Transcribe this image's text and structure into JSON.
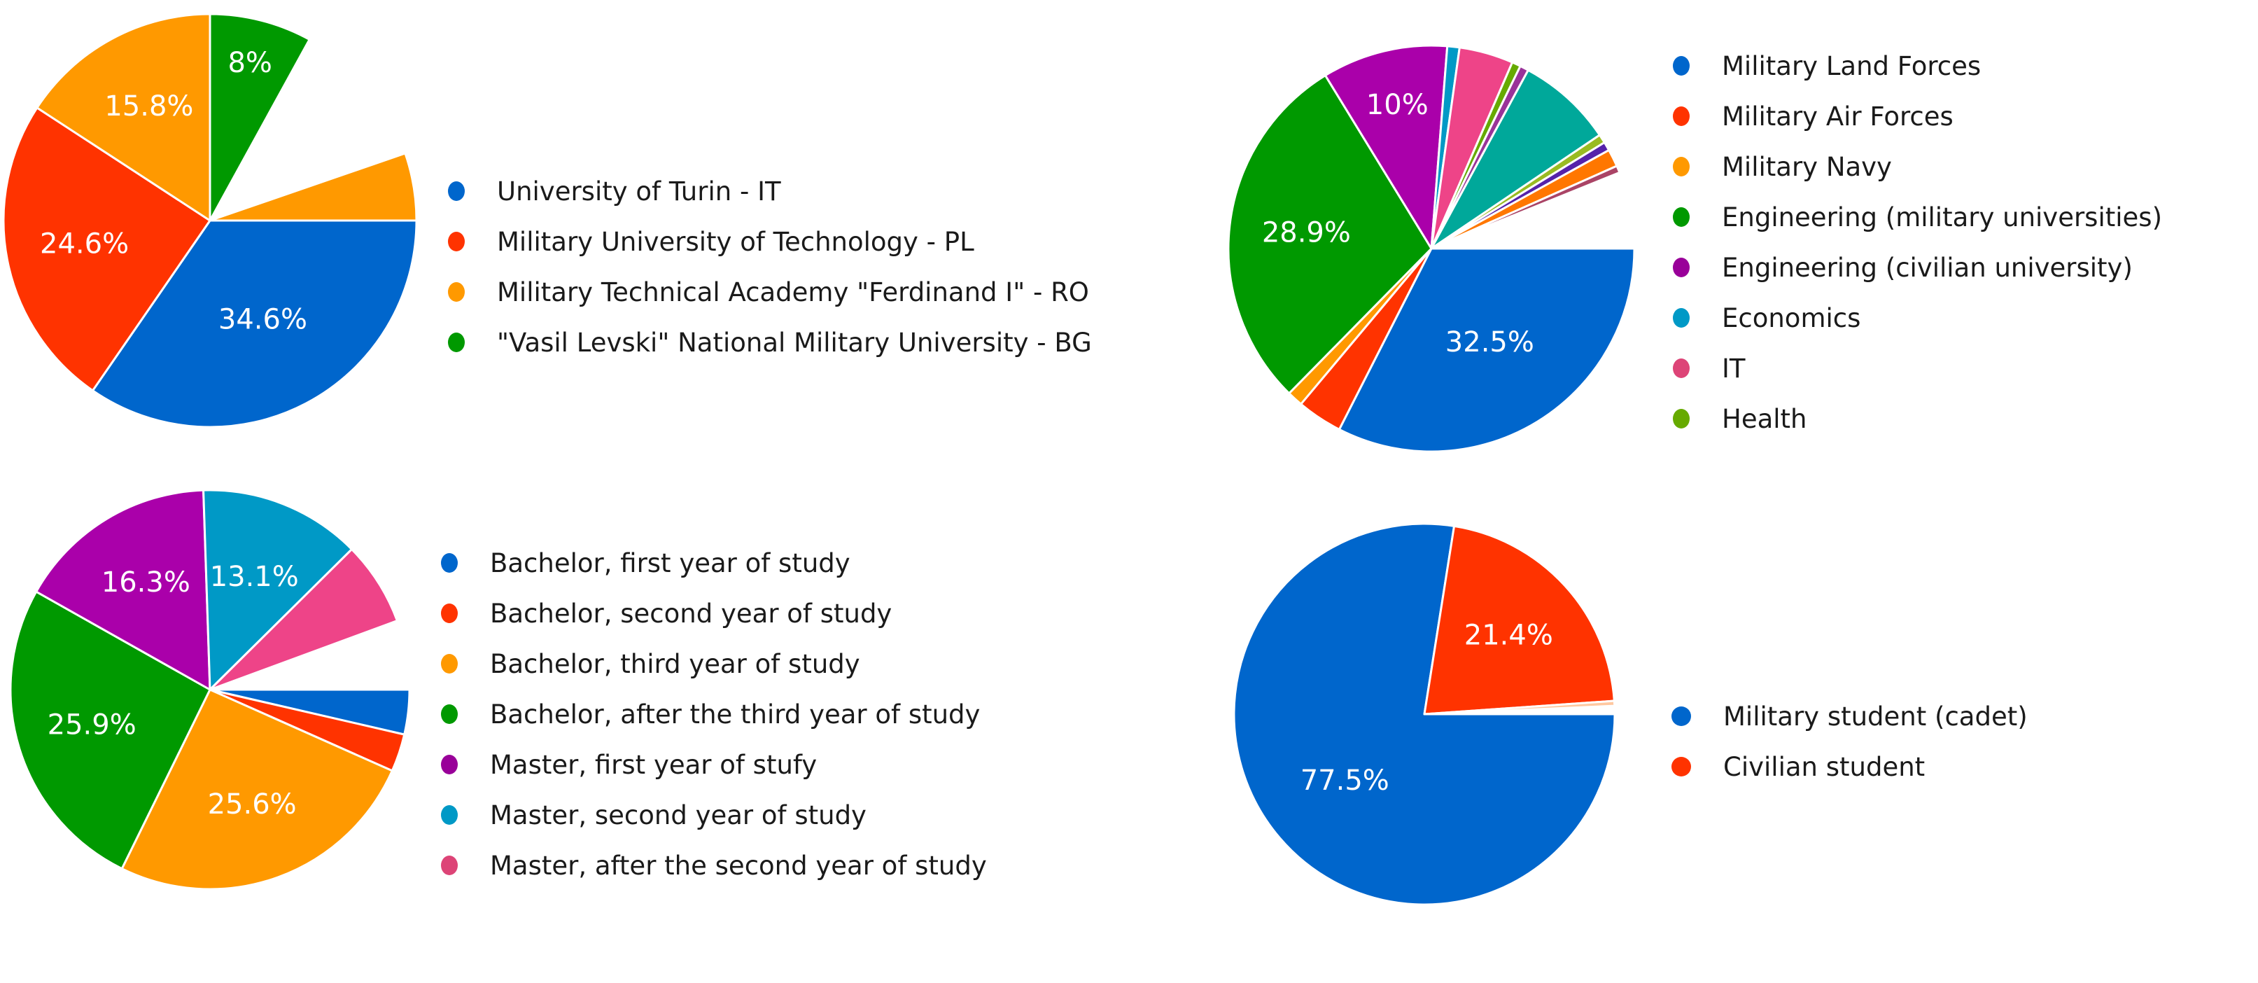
{
  "chart_data": [
    {
      "type": "pie",
      "title": "",
      "id": "universities",
      "categories": [
        "University of Turin - IT",
        "Military University of Technology - PL",
        "Military Technical Academy \"Ferdinand I\" - RO",
        "\"Vasil Levski\" National Military University - BG"
      ],
      "values": [
        34.6,
        24.6,
        15.8,
        8.0
      ],
      "labels": [
        "34.6%",
        "24.6%",
        "15.8%",
        "8%"
      ],
      "colors": [
        "#0066CC",
        "#FF3300",
        "#FF9900",
        "#009900"
      ],
      "extra_wedge": {
        "color": "#FF9900",
        "start_deg": 341,
        "end_deg": 360
      },
      "legend_position": "right"
    },
    {
      "type": "pie",
      "title": "",
      "id": "field_of_study",
      "categories": [
        "Military Land Forces",
        "Military Air Forces",
        "Military Navy",
        "Engineering (military universities)",
        "Engineering (civilian university)",
        "Economics",
        "IT",
        "Health"
      ],
      "values": [
        32.5,
        3.6,
        1.2,
        28.9,
        10.0,
        1.0,
        4.3,
        0.8
      ],
      "labels": [
        "32.5%",
        "",
        "",
        "28.9%",
        "10%",
        "",
        "",
        ""
      ],
      "colors": [
        "#0066CC",
        "#FF3300",
        "#FF9900",
        "#009900",
        "#990099",
        "#0099C6",
        "#DD4477",
        "#66AA00"
      ],
      "additional_unlabeled_slices": [
        {
          "color": "#990099",
          "value": 0.8
        },
        {
          "color": "#0099A0",
          "value": 7.6
        },
        {
          "color": "#66AA00",
          "value": 0.7
        },
        {
          "color": "#5522AA",
          "value": 0.7
        },
        {
          "color": "#FF7700",
          "value": 1.4
        },
        {
          "color": "#AA4466",
          "value": 0.5
        }
      ],
      "legend_position": "right"
    },
    {
      "type": "pie",
      "title": "",
      "id": "study_year",
      "categories": [
        "Bachelor, first year of study",
        "Bachelor, second year of study",
        "Bachelor, third year of study",
        "Bachelor, after the third year of study",
        "Master, first year of stufy",
        "Master, second year of study",
        "Master, after the second year of study"
      ],
      "values": [
        3.6,
        3.0,
        25.6,
        25.9,
        16.3,
        13.1,
        6.8
      ],
      "labels": [
        "",
        "",
        "25.6%",
        "25.9%",
        "16.3%",
        "13.1%",
        ""
      ],
      "colors": [
        "#0066CC",
        "#FF3300",
        "#FF9900",
        "#009900",
        "#990099",
        "#0099C6",
        "#DD4477"
      ],
      "legend_position": "right"
    },
    {
      "type": "pie",
      "title": "",
      "id": "student_type",
      "categories": [
        "Military student (cadet)",
        "Civilian student"
      ],
      "values": [
        77.5,
        21.4
      ],
      "labels": [
        "77.5%",
        "21.4%"
      ],
      "colors": [
        "#0066CC",
        "#FF3300"
      ],
      "legend_position": "right"
    }
  ],
  "legends": {
    "universities": [
      {
        "label": "University of Turin - IT",
        "color": "#0066CC"
      },
      {
        "label": "Military University of Technology - PL",
        "color": "#FF3300"
      },
      {
        "label": "Military Technical Academy \"Ferdinand I\" - RO",
        "color": "#FF9900"
      },
      {
        "label": "\"Vasil Levski\" National Military University - BG",
        "color": "#009900"
      }
    ],
    "field_of_study": [
      {
        "label": "Military Land Forces",
        "color": "#0066CC"
      },
      {
        "label": "Military Air Forces",
        "color": "#FF3300"
      },
      {
        "label": "Military Navy",
        "color": "#FF9900"
      },
      {
        "label": "Engineering (military universities)",
        "color": "#009900"
      },
      {
        "label": "Engineering (civilian university)",
        "color": "#990099"
      },
      {
        "label": "Economics",
        "color": "#0099C6"
      },
      {
        "label": "IT",
        "color": "#DD4477"
      },
      {
        "label": "Health",
        "color": "#66AA00"
      }
    ],
    "study_year": [
      {
        "label": "Bachelor, first year of study",
        "color": "#0066CC"
      },
      {
        "label": "Bachelor, second year of study",
        "color": "#FF3300"
      },
      {
        "label": "Bachelor, third year of study",
        "color": "#FF9900"
      },
      {
        "label": "Bachelor, after the third year of study",
        "color": "#009900"
      },
      {
        "label": "Master, first year of stufy",
        "color": "#990099"
      },
      {
        "label": "Master, second year of study",
        "color": "#0099C6"
      },
      {
        "label": "Master, after the second year of study",
        "color": "#DD4477"
      }
    ],
    "student_type": [
      {
        "label": "Military student (cadet)",
        "color": "#0066CC"
      },
      {
        "label": "Civilian student",
        "color": "#FF3300"
      }
    ]
  },
  "pie_slices": {
    "universities": [
      {
        "color": "#0066CC",
        "start": 0,
        "end": 124.6,
        "label": "34.6%",
        "lr": 0.55
      },
      {
        "color": "#FF3300",
        "start": 124.6,
        "end": 213.1,
        "label": "24.6%",
        "lr": 0.62
      },
      {
        "color": "#FF9900",
        "start": 213.1,
        "end": 270.0,
        "label": "15.8%",
        "lr": 0.62
      },
      {
        "color": "#009900",
        "start": 270.0,
        "end": 298.8,
        "label": "8%",
        "lr": 0.78
      },
      {
        "color": "#FF9900",
        "start": 341.0,
        "end": 360.0,
        "label": "",
        "lr": 0.7
      }
    ],
    "field_of_study": [
      {
        "color": "#0066CC",
        "start": 0,
        "end": 117.0,
        "label": "32.5%",
        "lr": 0.55
      },
      {
        "color": "#FF3300",
        "start": 117.0,
        "end": 130.0,
        "label": "",
        "lr": 0.7
      },
      {
        "color": "#FF9900",
        "start": 130.0,
        "end": 134.5,
        "label": "",
        "lr": 0.7
      },
      {
        "color": "#009900",
        "start": 134.5,
        "end": 238.5,
        "label": "28.9%",
        "lr": 0.62
      },
      {
        "color": "#AA00AA",
        "start": 238.5,
        "end": 274.5,
        "label": "10%",
        "lr": 0.72
      },
      {
        "color": "#0099C6",
        "start": 274.5,
        "end": 278.0,
        "label": "",
        "lr": 0.7
      },
      {
        "color": "#EE4488",
        "start": 278.0,
        "end": 293.5,
        "label": "",
        "lr": 0.7
      },
      {
        "color": "#66AA00",
        "start": 293.5,
        "end": 296.0,
        "label": "",
        "lr": 0.7
      },
      {
        "color": "#993399",
        "start": 296.0,
        "end": 298.5,
        "label": "",
        "lr": 0.7
      },
      {
        "color": "#00A89A",
        "start": 298.5,
        "end": 326.0,
        "label": "",
        "lr": 0.7
      },
      {
        "color": "#99BB22",
        "start": 326.0,
        "end": 328.5,
        "label": "",
        "lr": 0.7
      },
      {
        "color": "#5522AA",
        "start": 328.5,
        "end": 331.0,
        "label": "",
        "lr": 0.7
      },
      {
        "color": "#FF7700",
        "start": 331.0,
        "end": 336.0,
        "label": "",
        "lr": 0.7
      },
      {
        "color": "#AA4466",
        "start": 336.0,
        "end": 338.0,
        "label": "",
        "lr": 0.7
      }
    ],
    "study_year": [
      {
        "color": "#0066CC",
        "start": 0,
        "end": 13.0,
        "label": "",
        "lr": 0.7
      },
      {
        "color": "#FF3300",
        "start": 13.0,
        "end": 24.0,
        "label": "",
        "lr": 0.7
      },
      {
        "color": "#FF9900",
        "start": 24.0,
        "end": 116.2,
        "label": "25.6%",
        "lr": 0.62
      },
      {
        "color": "#009900",
        "start": 116.2,
        "end": 209.4,
        "label": "25.9%",
        "lr": 0.62
      },
      {
        "color": "#AA00AA",
        "start": 209.4,
        "end": 268.1,
        "label": "16.3%",
        "lr": 0.62
      },
      {
        "color": "#0099C6",
        "start": 268.1,
        "end": 315.3,
        "label": "13.1%",
        "lr": 0.6
      },
      {
        "color": "#EE4488",
        "start": 315.3,
        "end": 339.8,
        "label": "",
        "lr": 0.7
      }
    ],
    "student_type": [
      {
        "color": "#0066CC",
        "start": 0,
        "end": 279.0,
        "label": "77.5%",
        "lr": 0.55
      },
      {
        "color": "#FF3300",
        "start": 279.0,
        "end": 356.0,
        "label": "21.4%",
        "lr": 0.6
      },
      {
        "color": "#FFC8A0",
        "start": 356.0,
        "end": 357.5,
        "label": "",
        "lr": 0.7
      }
    ]
  }
}
